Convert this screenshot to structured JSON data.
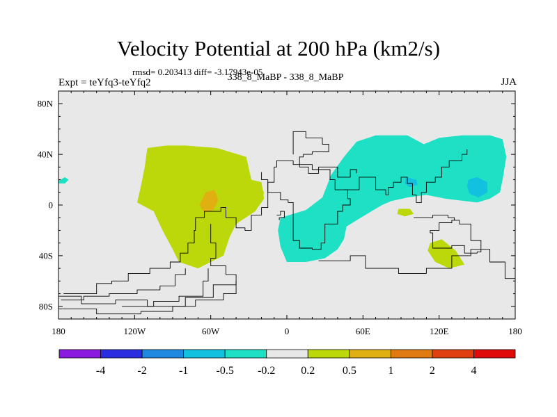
{
  "header": {
    "title": "Velocity Potential at 200 hPa (km2/s)",
    "stats": "rmsd= 0.203413 diff= -3.17943e-05",
    "experiment": "Expt = teYfq3-teYfq2",
    "case": "338_8_MaBP - 338_8_MaBP",
    "season": "JJA"
  },
  "chart_data": {
    "type": "heatmap",
    "title": "Velocity Potential at 200 hPa (km2/s)",
    "xlabel": "",
    "ylabel": "",
    "xlim": [
      -180,
      180
    ],
    "ylim": [
      -90,
      90
    ],
    "x_ticks": [
      {
        "value": -180,
        "label": "180"
      },
      {
        "value": -120,
        "label": "120W"
      },
      {
        "value": -60,
        "label": "60W"
      },
      {
        "value": 0,
        "label": "0"
      },
      {
        "value": 60,
        "label": "60E"
      },
      {
        "value": 120,
        "label": "120E"
      },
      {
        "value": 180,
        "label": "180"
      }
    ],
    "y_ticks": [
      {
        "value": 80,
        "label": "80N"
      },
      {
        "value": 40,
        "label": "40N"
      },
      {
        "value": 0,
        "label": "0"
      },
      {
        "value": -40,
        "label": "40S"
      },
      {
        "value": -80,
        "label": "80S"
      }
    ],
    "colorbar": {
      "levels": [
        "-4",
        "-2",
        "-1",
        "-0.5",
        "-0.2",
        "0.2",
        "0.5",
        "1",
        "2",
        "4"
      ],
      "colors": [
        "#8a1ae0",
        "#2a2ee0",
        "#1f88e0",
        "#12c0e0",
        "#1ee0c4",
        "#e8e8e8",
        "#bcd80a",
        "#e0b012",
        "#e07a12",
        "#e04010",
        "#e00a0a"
      ]
    },
    "background_color": "#e8e8e8",
    "regions": [
      {
        "name": "positive-west",
        "level": "0.2 to 0.5",
        "color": "#bcd80a",
        "outline": [
          [
            -110,
            45
          ],
          [
            -95,
            47
          ],
          [
            -80,
            47
          ],
          [
            -55,
            45
          ],
          [
            -32,
            38
          ],
          [
            -28,
            20
          ],
          [
            -20,
            18
          ],
          [
            -18,
            5
          ],
          [
            -25,
            -5
          ],
          [
            -40,
            -15
          ],
          [
            -45,
            -25
          ],
          [
            -50,
            -40
          ],
          [
            -70,
            -50
          ],
          [
            -85,
            -45
          ],
          [
            -90,
            -35
          ],
          [
            -98,
            -20
          ],
          [
            -105,
            -5
          ],
          [
            -118,
            2
          ],
          [
            -115,
            15
          ],
          [
            -112,
            30
          ]
        ]
      },
      {
        "name": "positive-atlantic",
        "level": "0.2 to 0.5",
        "color": "#bcd80a",
        "outline": [
          [
            -30,
            15
          ],
          [
            -22,
            18
          ],
          [
            -18,
            10
          ],
          [
            -20,
            2
          ],
          [
            -27,
            0
          ],
          [
            -30,
            8
          ]
        ]
      },
      {
        "name": "positive-south-pacific",
        "level": "0.2 to 0.5",
        "color": "#bcd80a",
        "outline": [
          [
            113,
            -30
          ],
          [
            122,
            -27
          ],
          [
            133,
            -36
          ],
          [
            140,
            -47
          ],
          [
            128,
            -50
          ],
          [
            117,
            -45
          ],
          [
            111,
            -36
          ]
        ]
      },
      {
        "name": "positive-indian",
        "level": "0.2 to 0.5",
        "color": "#bcd80a",
        "outline": [
          [
            88,
            -3
          ],
          [
            97,
            -3
          ],
          [
            100,
            -7
          ],
          [
            93,
            -9
          ],
          [
            87,
            -7
          ]
        ]
      },
      {
        "name": "positive-west-core",
        "level": "0.5 to 1",
        "color": "#e0b012",
        "outline": [
          [
            -64,
            10
          ],
          [
            -57,
            12
          ],
          [
            -54,
            4
          ],
          [
            -58,
            -4
          ],
          [
            -65,
            -6
          ],
          [
            -69,
            0
          ]
        ]
      },
      {
        "name": "negative-east",
        "level": "-0.5 to -0.2",
        "color": "#1ee0c4",
        "outline": [
          [
            -5,
            -10
          ],
          [
            5,
            -7
          ],
          [
            15,
            -4
          ],
          [
            28,
            6
          ],
          [
            35,
            24
          ],
          [
            45,
            38
          ],
          [
            55,
            50
          ],
          [
            70,
            55
          ],
          [
            95,
            55
          ],
          [
            108,
            48
          ],
          [
            120,
            53
          ],
          [
            138,
            55
          ],
          [
            160,
            55
          ],
          [
            170,
            52
          ],
          [
            173,
            38
          ],
          [
            170,
            20
          ],
          [
            168,
            10
          ],
          [
            160,
            5
          ],
          [
            150,
            2
          ],
          [
            125,
            5
          ],
          [
            110,
            8
          ],
          [
            95,
            6
          ],
          [
            82,
            3
          ],
          [
            75,
            0
          ],
          [
            65,
            -6
          ],
          [
            55,
            -12
          ],
          [
            47,
            -17
          ],
          [
            45,
            -27
          ],
          [
            40,
            -35
          ],
          [
            30,
            -42
          ],
          [
            15,
            -45
          ],
          [
            0,
            -45
          ],
          [
            -5,
            -33
          ],
          [
            -7,
            -20
          ]
        ]
      },
      {
        "name": "negative-pacific-edge",
        "level": "-0.5 to -0.2",
        "color": "#1ee0c4",
        "outline": [
          [
            -180,
            19
          ],
          [
            -175,
            22
          ],
          [
            -172,
            20
          ],
          [
            -175,
            17
          ],
          [
            -180,
            17
          ]
        ]
      },
      {
        "name": "negative-east-core-1",
        "level": "-1 to -0.5",
        "color": "#12c0e0",
        "outline": [
          [
            94,
            22
          ],
          [
            102,
            20
          ],
          [
            103,
            16
          ],
          [
            97,
            14
          ],
          [
            93,
            17
          ]
        ]
      },
      {
        "name": "negative-east-core-2",
        "level": "-1 to -0.5",
        "color": "#12c0e0",
        "outline": [
          [
            143,
            20
          ],
          [
            150,
            22
          ],
          [
            158,
            18
          ],
          [
            158,
            10
          ],
          [
            151,
            6
          ],
          [
            144,
            9
          ],
          [
            142,
            15
          ]
        ]
      }
    ],
    "coastlines": [
      [
        [
          -176,
          -70
        ],
        [
          -150,
          -62
        ],
        [
          -138,
          -60
        ],
        [
          -125,
          -54
        ],
        [
          -108,
          -50
        ],
        [
          -92,
          -45
        ],
        [
          -84,
          -38
        ],
        [
          -78,
          -30
        ],
        [
          -73,
          -20
        ],
        [
          -72,
          -10
        ],
        [
          -65,
          -5
        ],
        [
          -52,
          -2
        ],
        [
          -48,
          -10
        ],
        [
          -40,
          -18
        ],
        [
          -33,
          -20
        ],
        [
          -28,
          -8
        ],
        [
          -20,
          -2
        ],
        [
          -15,
          5
        ],
        [
          -15,
          20
        ],
        [
          -20,
          26
        ]
      ],
      [
        [
          -180,
          -72
        ],
        [
          -162,
          -78
        ],
        [
          -135,
          -75
        ],
        [
          -110,
          -80
        ],
        [
          -80,
          -73
        ],
        [
          -58,
          -63
        ],
        [
          -40,
          -55
        ],
        [
          -48,
          -48
        ],
        [
          -60,
          -42
        ],
        [
          -56,
          -30
        ],
        [
          -60,
          -15
        ]
      ],
      [
        [
          -180,
          -82
        ],
        [
          -150,
          -86
        ],
        [
          -115,
          -84
        ],
        [
          -90,
          -80
        ],
        [
          -72,
          -75
        ],
        [
          -50,
          -70
        ],
        [
          -40,
          -60
        ]
      ],
      [
        [
          -178,
          -75
        ],
        [
          -160,
          -72
        ],
        [
          -140,
          -70
        ],
        [
          -118,
          -67
        ],
        [
          -100,
          -64
        ],
        [
          -88,
          -55
        ],
        [
          -80,
          -50
        ]
      ],
      [
        [
          -130,
          -80
        ],
        [
          -105,
          -76
        ],
        [
          -85,
          -72
        ],
        [
          -66,
          -60
        ],
        [
          -62,
          -50
        ]
      ],
      [
        [
          5,
          40
        ],
        [
          5,
          58
        ],
        [
          15,
          58
        ],
        [
          15,
          53
        ],
        [
          28,
          53
        ],
        [
          28,
          48
        ],
        [
          33,
          48
        ],
        [
          33,
          42
        ],
        [
          20,
          40
        ],
        [
          13,
          38
        ],
        [
          10,
          30
        ],
        [
          17,
          25
        ],
        [
          25,
          30
        ],
        [
          32,
          30
        ],
        [
          40,
          22
        ],
        [
          50,
          28
        ],
        [
          55,
          25
        ]
      ],
      [
        [
          1,
          2
        ],
        [
          5,
          -5
        ],
        [
          5,
          -28
        ],
        [
          10,
          -34
        ],
        [
          20,
          -35
        ],
        [
          27,
          -30
        ],
        [
          30,
          -15
        ],
        [
          40,
          -5
        ],
        [
          44,
          0
        ],
        [
          50,
          5
        ],
        [
          48,
          12
        ],
        [
          42,
          12
        ],
        [
          38,
          20
        ],
        [
          34,
          28
        ],
        [
          20,
          32
        ],
        [
          5,
          35
        ],
        [
          -2,
          35
        ],
        [
          -8,
          30
        ],
        [
          -10,
          18
        ],
        [
          -15,
          10
        ],
        [
          -5,
          4
        ],
        [
          1,
          2
        ]
      ],
      [
        [
          45,
          12
        ],
        [
          57,
          22
        ],
        [
          60,
          22
        ],
        [
          67,
          22
        ],
        [
          70,
          12
        ],
        [
          78,
          8
        ],
        [
          80,
          14
        ],
        [
          84,
          18
        ],
        [
          90,
          22
        ],
        [
          95,
          17
        ],
        [
          99,
          8
        ],
        [
          102,
          2
        ],
        [
          106,
          10
        ],
        [
          110,
          18
        ],
        [
          117,
          22
        ],
        [
          122,
          30
        ],
        [
          128,
          35
        ],
        [
          138,
          40
        ],
        [
          142,
          44
        ]
      ],
      [
        [
          100,
          -10
        ],
        [
          115,
          -8
        ],
        [
          127,
          -10
        ],
        [
          132,
          -12
        ]
      ],
      [
        [
          113,
          -22
        ],
        [
          115,
          -34
        ],
        [
          130,
          -32
        ],
        [
          140,
          -38
        ],
        [
          150,
          -37
        ],
        [
          153,
          -28
        ],
        [
          145,
          -15
        ],
        [
          136,
          -12
        ],
        [
          130,
          -14
        ],
        [
          120,
          -20
        ],
        [
          113,
          -22
        ]
      ],
      [
        [
          25,
          -44
        ],
        [
          50,
          -40
        ],
        [
          62,
          -50
        ],
        [
          88,
          -54
        ],
        [
          110,
          -50
        ],
        [
          130,
          -40
        ],
        [
          145,
          -35
        ],
        [
          160,
          -45
        ],
        [
          172,
          -58
        ],
        [
          180,
          -68
        ]
      ],
      [
        [
          -8,
          -8
        ],
        [
          -5,
          -5
        ],
        [
          -2,
          -10
        ],
        [
          -6,
          -12
        ]
      ]
    ]
  }
}
